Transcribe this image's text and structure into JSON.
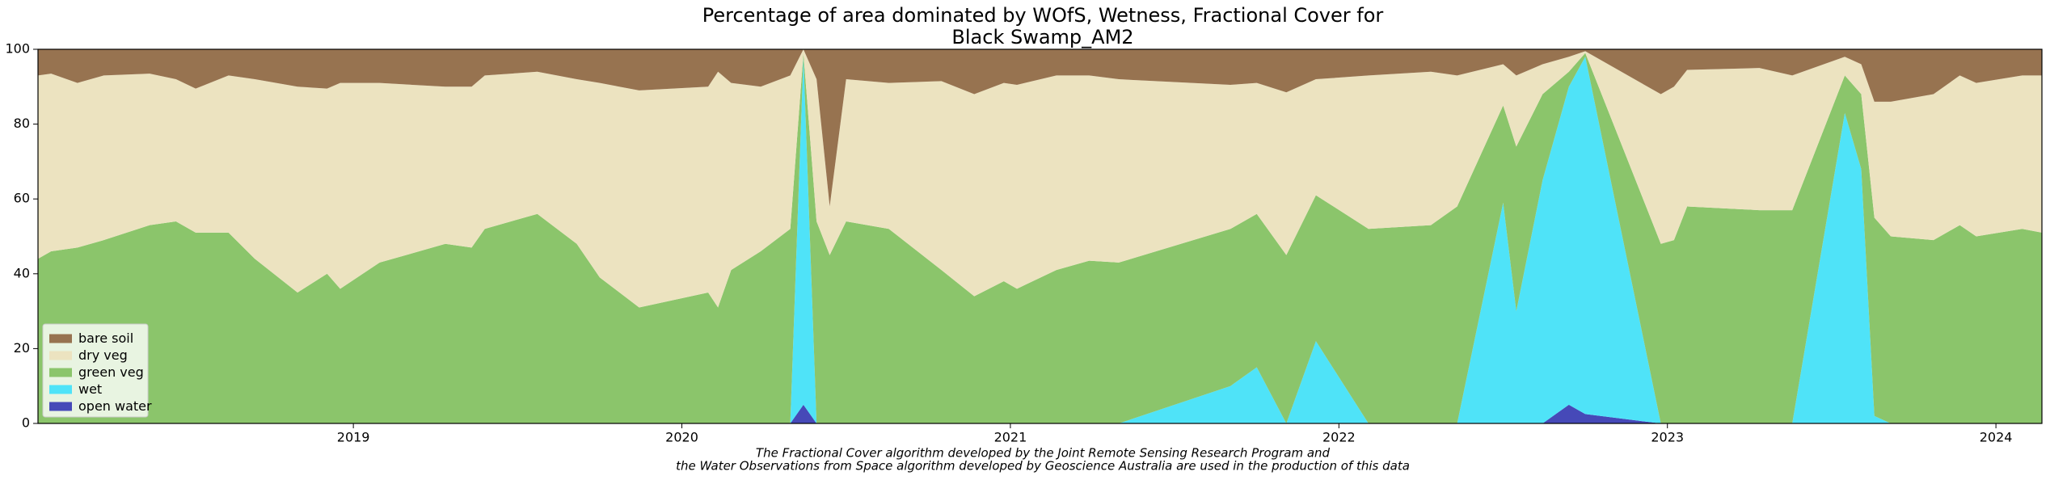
{
  "chart_data": {
    "type": "stacked_area",
    "title": [
      "Percentage of area dominated by WOfS, Wetness, Fractional Cover for",
      "Black Swamp_AM2"
    ],
    "footnote": [
      "The Fractional Cover algorithm developed by the Joint Remote Sensing Research Program and",
      "the Water Observations from Space algorithm developed by Geoscience Australia are used in the production of this data"
    ],
    "x": [
      2018.04,
      2018.08,
      2018.16,
      2018.24,
      2018.38,
      2018.46,
      2018.52,
      2018.62,
      2018.7,
      2018.83,
      2018.92,
      2018.96,
      2019.08,
      2019.28,
      2019.36,
      2019.4,
      2019.56,
      2019.68,
      2019.75,
      2019.87,
      2020.08,
      2020.11,
      2020.15,
      2020.24,
      2020.33,
      2020.37,
      2020.41,
      2020.45,
      2020.5,
      2020.63,
      2020.79,
      2020.89,
      2020.98,
      2021.02,
      2021.14,
      2021.24,
      2021.33,
      2021.67,
      2021.75,
      2021.84,
      2021.93,
      2022.09,
      2022.28,
      2022.36,
      2022.5,
      2022.54,
      2022.62,
      2022.7,
      2022.75,
      2022.98,
      2023.02,
      2023.06,
      2023.28,
      2023.38,
      2023.54,
      2023.59,
      2023.63,
      2023.68,
      2023.81,
      2023.89,
      2023.94,
      2024.08,
      2024.14
    ],
    "series": [
      {
        "name": "open water",
        "color": "#4649b8",
        "values": [
          0,
          0,
          0,
          0,
          0,
          0,
          0,
          0,
          0,
          0,
          0,
          0,
          0,
          0,
          0,
          0,
          0,
          0,
          0,
          0,
          0,
          0,
          0,
          0,
          0,
          5,
          0,
          0,
          0,
          0,
          0,
          0,
          0,
          0,
          0,
          0,
          0,
          0,
          0,
          0,
          0,
          0,
          0,
          0,
          0,
          0,
          0,
          5,
          2.5,
          0,
          0,
          0,
          0,
          0,
          0,
          0,
          0,
          0,
          0,
          0,
          0,
          0,
          0
        ]
      },
      {
        "name": "wet",
        "color": "#4fe3f8",
        "values": [
          0,
          0,
          0,
          0,
          0,
          0,
          0,
          0,
          0,
          0,
          0,
          0,
          0,
          0,
          0,
          0,
          0,
          0,
          0,
          0,
          0,
          0,
          0,
          0,
          0,
          93,
          0,
          0,
          0,
          0,
          0,
          0,
          0,
          0,
          0,
          0,
          0,
          10,
          15,
          0,
          22,
          0,
          0,
          0,
          59,
          30,
          65,
          85,
          95.5,
          0,
          0,
          0,
          0,
          0,
          83,
          68,
          2,
          0,
          0,
          0,
          0,
          0,
          0
        ]
      },
      {
        "name": "green veg",
        "color": "#8bc56b",
        "values": [
          44,
          46,
          47,
          49,
          53,
          54,
          51,
          51,
          44,
          35,
          40,
          36,
          43,
          48,
          47,
          52,
          56,
          48,
          39,
          31,
          35,
          31,
          41,
          46,
          52,
          1,
          54,
          45,
          54,
          52,
          41,
          34,
          38,
          36,
          41,
          43.5,
          43,
          42,
          41,
          45,
          39,
          52,
          53,
          58,
          26,
          44,
          23,
          4,
          1,
          48,
          49,
          58,
          57,
          57,
          10,
          20,
          53,
          50,
          49,
          53,
          50,
          52,
          51
        ]
      },
      {
        "name": "dry veg",
        "color": "#ece3c0",
        "values": [
          49,
          47.5,
          44,
          44,
          40.5,
          38,
          38.5,
          42,
          48,
          55,
          49.5,
          55,
          48,
          42,
          43,
          41,
          38,
          44,
          52,
          58,
          55,
          63,
          50,
          44,
          41,
          1,
          38,
          13,
          38,
          39,
          50.5,
          54,
          53,
          54.5,
          52,
          49.5,
          49,
          38.5,
          35,
          43.5,
          31,
          41,
          41,
          35,
          11,
          19,
          8,
          4,
          0.5,
          40,
          41,
          36.5,
          38,
          36,
          5,
          8,
          31,
          36,
          39,
          40,
          41,
          41,
          42
        ]
      },
      {
        "name": "bare soil",
        "color": "#977350",
        "values": [
          7,
          6.5,
          9,
          7,
          6.5,
          8,
          10.5,
          7,
          8,
          10,
          10.5,
          9,
          9,
          10,
          10,
          7,
          6,
          8,
          9,
          11,
          10,
          6,
          9,
          10,
          7,
          0,
          8,
          42,
          8,
          9,
          8.5,
          12,
          9,
          9.5,
          7,
          7,
          8,
          9.5,
          9,
          11.5,
          8,
          7,
          6,
          7,
          4,
          7,
          4,
          2,
          0.5,
          12,
          10,
          5.5,
          5,
          7,
          2,
          4,
          14,
          14,
          12,
          7,
          9,
          7,
          7
        ]
      }
    ],
    "xlim": [
      2018.04,
      2024.14
    ],
    "xticks": [
      2019,
      2020,
      2021,
      2022,
      2023,
      2024
    ],
    "ylim": [
      0,
      100
    ],
    "yticks": [
      0,
      20,
      40,
      60,
      80,
      100
    ],
    "legend": "lower left"
  }
}
